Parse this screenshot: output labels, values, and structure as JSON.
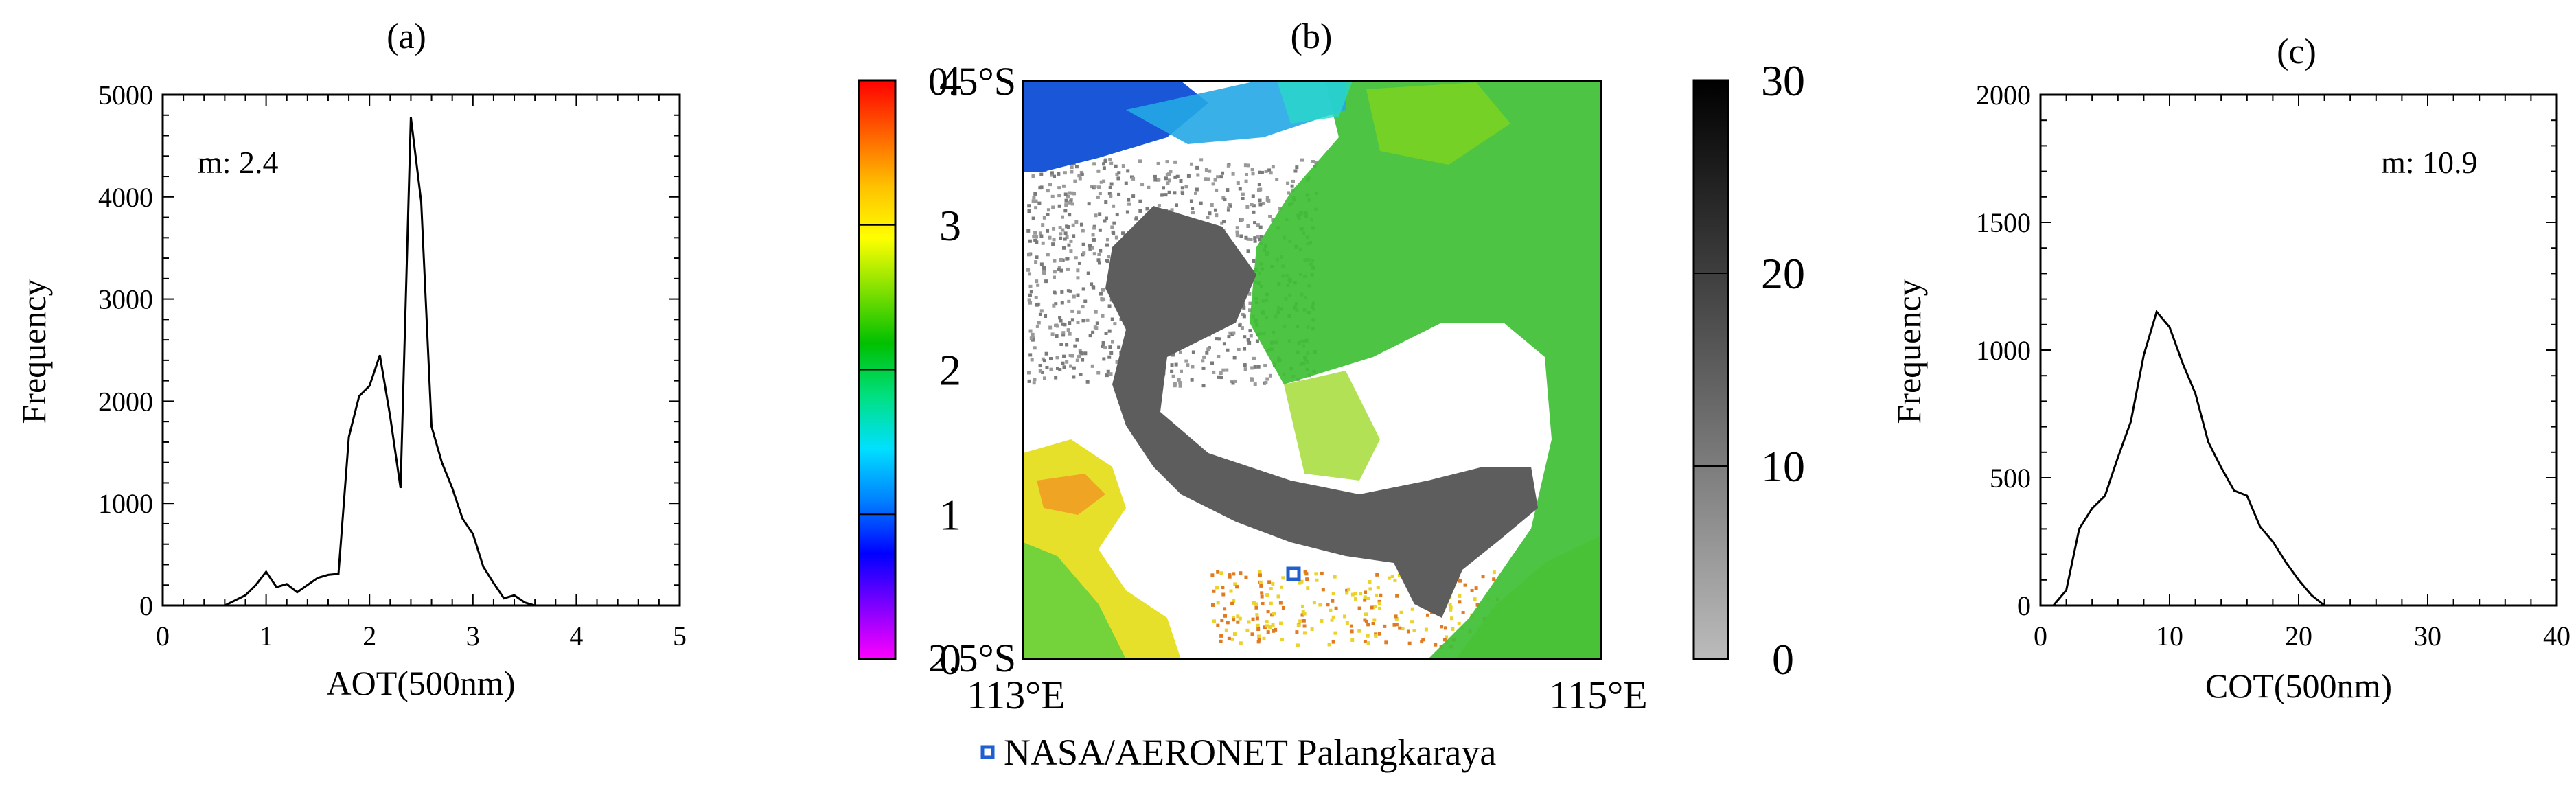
{
  "chart_data": [
    {
      "type": "line",
      "panel_label": "(a)",
      "xlabel": "AOT(500nm)",
      "ylabel": "Frequency",
      "xlim": [
        0,
        5
      ],
      "ylim": [
        0,
        5000
      ],
      "xticks": [
        0,
        1,
        2,
        3,
        4,
        5
      ],
      "yticks": [
        0,
        1000,
        2000,
        3000,
        4000,
        5000
      ],
      "annotation": "m: 2.4",
      "series": [
        {
          "x": [
            0.6,
            0.8,
            0.9,
            1.0,
            1.1,
            1.2,
            1.3,
            1.4,
            1.5,
            1.6,
            1.7,
            1.8,
            1.9,
            2.0,
            2.1,
            2.2,
            2.3,
            2.4,
            2.5,
            2.6,
            2.7,
            2.8,
            2.9,
            3.0,
            3.1,
            3.2,
            3.3,
            3.4,
            3.5,
            3.6
          ],
          "y": [
            0,
            100,
            200,
            330,
            180,
            210,
            130,
            200,
            270,
            300,
            310,
            1650,
            2050,
            2150,
            2450,
            1850,
            1150,
            4780,
            3950,
            1750,
            1400,
            1150,
            850,
            700,
            380,
            220,
            70,
            100,
            30,
            0
          ]
        }
      ]
    },
    {
      "type": "heatmap",
      "panel_label": "(b)",
      "x_tick_labels": [
        "113°E",
        "115°E"
      ],
      "y_tick_labels": [
        "0.5°S",
        "2.5°S"
      ],
      "xlim": [
        113,
        115
      ],
      "ylim": [
        -2.5,
        -0.5
      ],
      "colorbar_aot": {
        "ticks": [
          "0",
          "1",
          "2",
          "3",
          "4"
        ],
        "range": [
          0,
          4
        ],
        "colors": [
          "#ff00ff",
          "#8000ff",
          "#0000ff",
          "#0080ff",
          "#00e0ff",
          "#00e080",
          "#00c000",
          "#80e000",
          "#ffff00",
          "#ffc000",
          "#ff6000",
          "#ff0000"
        ]
      },
      "colorbar_cot": {
        "ticks": [
          "0",
          "10",
          "20",
          "30"
        ],
        "range": [
          0,
          30
        ],
        "colors": [
          "#bbbbbb",
          "#000000"
        ]
      },
      "legend": "NASA/AERONET Palangkaraya",
      "station_color": "#1f5fcf"
    },
    {
      "type": "line",
      "panel_label": "(c)",
      "xlabel": "COT(500nm)",
      "ylabel": "Frequency",
      "xlim": [
        0,
        40
      ],
      "ylim": [
        0,
        2000
      ],
      "xticks": [
        0,
        10,
        20,
        30,
        40
      ],
      "yticks": [
        0,
        500,
        1000,
        1500,
        2000
      ],
      "annotation": "m: 10.9",
      "series": [
        {
          "x": [
            1,
            2,
            3,
            4,
            5,
            6,
            7,
            8,
            9,
            10,
            11,
            12,
            13,
            14,
            15,
            16,
            17,
            18,
            19,
            20,
            21,
            22
          ],
          "y": [
            0,
            60,
            300,
            380,
            430,
            580,
            720,
            980,
            1150,
            1090,
            950,
            830,
            640,
            540,
            450,
            430,
            310,
            250,
            170,
            100,
            40,
            0
          ]
        }
      ]
    }
  ]
}
